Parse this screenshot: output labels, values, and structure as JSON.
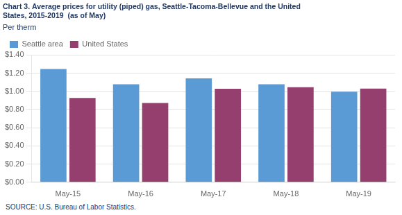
{
  "chart_data": {
    "type": "bar",
    "title": [
      "Chart 3. Average prices for utility (piped) gas, Seattle-Tacoma-Bellevue and the United",
      "States, 2015-2019  (as of May)"
    ],
    "subtitle": "Per therm",
    "annotations": [
      "SOURCE: U.S. Bureau of Labor Statistics."
    ],
    "categories": [
      "May-15",
      "May-16",
      "May-17",
      "May-18",
      "May-19"
    ],
    "series": [
      {
        "name": "Seattle area",
        "color": "#5B9BD5",
        "values": [
          1.247,
          1.079,
          1.143,
          1.079,
          0.997
        ]
      },
      {
        "name": "United States",
        "color": "#943F6D",
        "values": [
          0.928,
          0.872,
          1.029,
          1.046,
          1.031
        ]
      }
    ],
    "ylim": [
      0,
      1.4
    ],
    "yticks": [
      {
        "value": 0.0,
        "label": "$0.00"
      },
      {
        "value": 0.2,
        "label": "$0.20"
      },
      {
        "value": 0.4,
        "label": "$0.40"
      },
      {
        "value": 0.6,
        "label": "$0.60"
      },
      {
        "value": 0.8,
        "label": "$0.80"
      },
      {
        "value": 1.0,
        "label": "$1.00"
      },
      {
        "value": 1.2,
        "label": "$1.20"
      },
      {
        "value": 1.4,
        "label": "$1.40"
      }
    ],
    "grid": true,
    "legend": "upper left"
  }
}
